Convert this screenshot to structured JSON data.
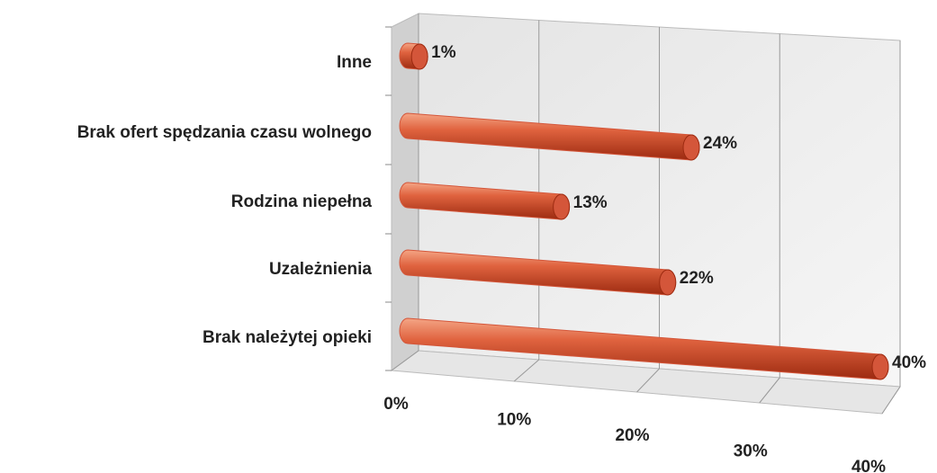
{
  "chart_data": {
    "type": "bar",
    "orientation": "horizontal",
    "categories": [
      "Inne",
      "Brak ofert spędzania czasu wolnego",
      "Rodzina niepełna",
      "Uzależnienia",
      "Brak należytej opieki"
    ],
    "values": [
      1,
      24,
      13,
      22,
      40
    ],
    "value_labels": [
      "1%",
      "24%",
      "13%",
      "22%",
      "40%"
    ],
    "color": "#d4563a",
    "xlim": [
      0,
      40
    ],
    "xticks": [
      {
        "value": 0,
        "label": "0%"
      },
      {
        "value": 10,
        "label": "10%"
      },
      {
        "value": 20,
        "label": "20%"
      },
      {
        "value": 30,
        "label": "30%"
      },
      {
        "value": 40,
        "label": "40%"
      }
    ],
    "grid": true
  }
}
